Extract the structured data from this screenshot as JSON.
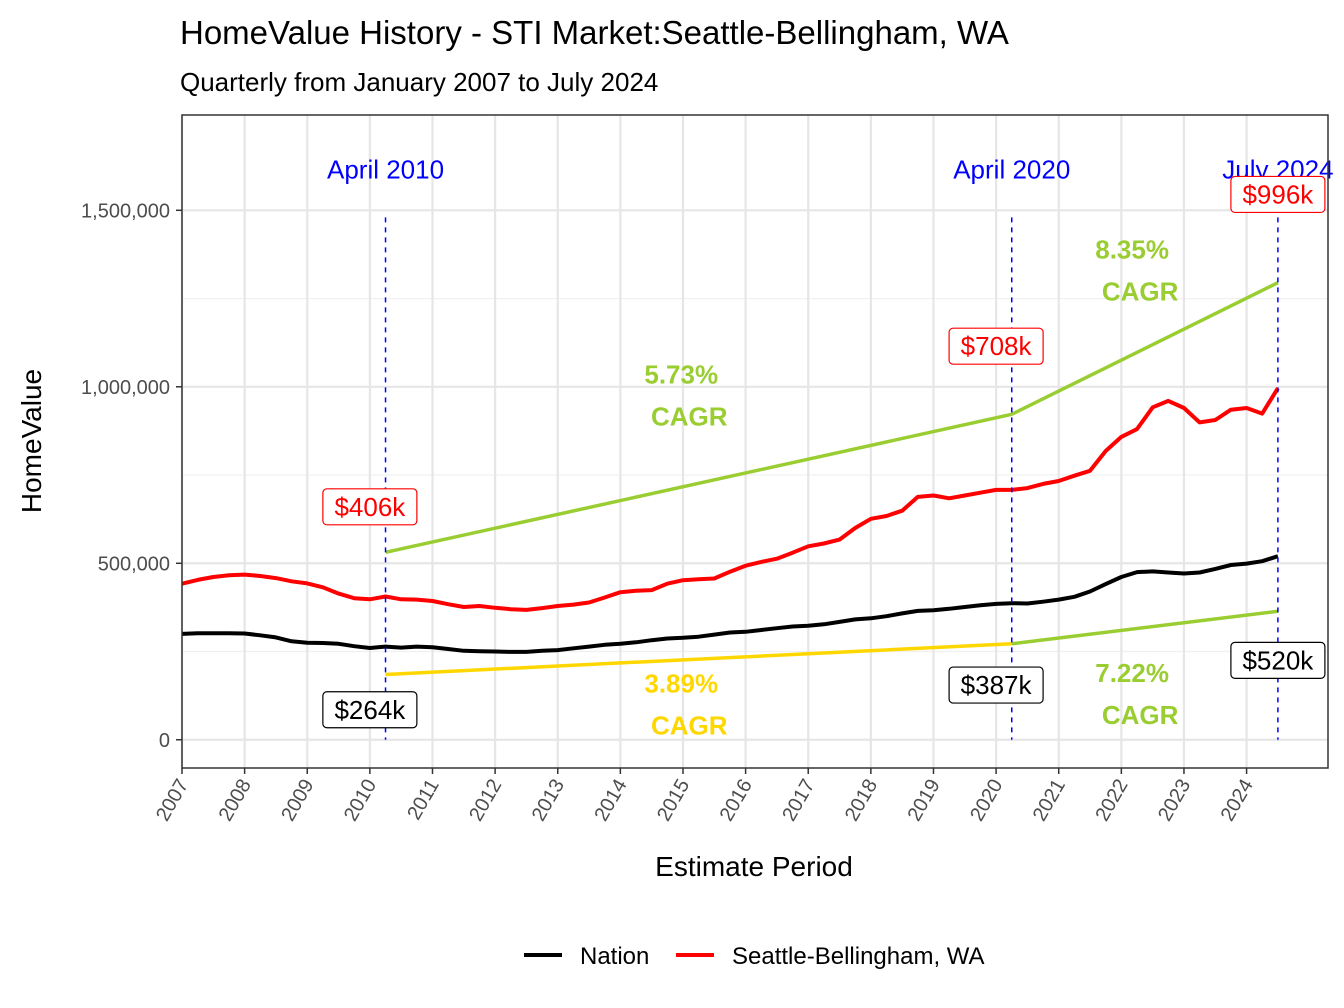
{
  "title": "HomeValue History - STI Market:Seattle-Bellingham, WA",
  "subtitle": "Quarterly from January 2007 to July 2024",
  "chart_data": {
    "type": "line",
    "xlabel": "Estimate Period",
    "ylabel": "HomeValue",
    "xlim": [
      2007,
      2025.3
    ],
    "ylim": [
      -80000,
      1770000
    ],
    "x_ticks": [
      "2007",
      "2008",
      "2009",
      "2010",
      "2011",
      "2012",
      "2013",
      "2014",
      "2015",
      "2016",
      "2017",
      "2018",
      "2019",
      "2020",
      "2021",
      "2022",
      "2023",
      "2024"
    ],
    "y_ticks": [
      0,
      500000,
      1000000,
      1500000
    ],
    "y_tick_labels": [
      "0",
      "500,000",
      "1,000,000",
      "1,500,000"
    ],
    "grid": true,
    "legend_position": "bottom",
    "series": [
      {
        "name": "Nation",
        "color": "#000000",
        "points": [
          [
            2007,
            300000
          ],
          [
            2007.25,
            302000
          ],
          [
            2007.5,
            302000
          ],
          [
            2007.75,
            302000
          ],
          [
            2008,
            301000
          ],
          [
            2008.25,
            296000
          ],
          [
            2008.5,
            290000
          ],
          [
            2008.75,
            279000
          ],
          [
            2009,
            275000
          ],
          [
            2009.25,
            274000
          ],
          [
            2009.5,
            272000
          ],
          [
            2009.75,
            265000
          ],
          [
            2010,
            260000
          ],
          [
            2010.25,
            264000
          ],
          [
            2010.5,
            261000
          ],
          [
            2010.75,
            264000
          ],
          [
            2011,
            262000
          ],
          [
            2011.25,
            257000
          ],
          [
            2011.5,
            252000
          ],
          [
            2011.75,
            251000
          ],
          [
            2012,
            250000
          ],
          [
            2012.25,
            249000
          ],
          [
            2012.5,
            249000
          ],
          [
            2012.75,
            252000
          ],
          [
            2013,
            254000
          ],
          [
            2013.25,
            259000
          ],
          [
            2013.5,
            264000
          ],
          [
            2013.75,
            269000
          ],
          [
            2014,
            272000
          ],
          [
            2014.25,
            276000
          ],
          [
            2014.5,
            282000
          ],
          [
            2014.75,
            287000
          ],
          [
            2015,
            289000
          ],
          [
            2015.25,
            292000
          ],
          [
            2015.5,
            298000
          ],
          [
            2015.75,
            304000
          ],
          [
            2016,
            306000
          ],
          [
            2016.25,
            311000
          ],
          [
            2016.5,
            316000
          ],
          [
            2016.75,
            321000
          ],
          [
            2017,
            323000
          ],
          [
            2017.25,
            327000
          ],
          [
            2017.5,
            334000
          ],
          [
            2017.75,
            341000
          ],
          [
            2018,
            344000
          ],
          [
            2018.25,
            350000
          ],
          [
            2018.5,
            358000
          ],
          [
            2018.75,
            365000
          ],
          [
            2019,
            367000
          ],
          [
            2019.25,
            371000
          ],
          [
            2019.5,
            376000
          ],
          [
            2019.75,
            381000
          ],
          [
            2020,
            385000
          ],
          [
            2020.25,
            387000
          ],
          [
            2020.5,
            386000
          ],
          [
            2020.75,
            391000
          ],
          [
            2021,
            397000
          ],
          [
            2021.25,
            405000
          ],
          [
            2021.5,
            420000
          ],
          [
            2021.75,
            441000
          ],
          [
            2022,
            461000
          ],
          [
            2022.25,
            475000
          ],
          [
            2022.5,
            477000
          ],
          [
            2022.75,
            474000
          ],
          [
            2023,
            471000
          ],
          [
            2023.25,
            474000
          ],
          [
            2023.5,
            484000
          ],
          [
            2023.75,
            495000
          ],
          [
            2024,
            499000
          ],
          [
            2024.25,
            506000
          ],
          [
            2024.5,
            520000
          ]
        ]
      },
      {
        "name": "Seattle-Bellingham, WA",
        "color": "#ff0000",
        "points": [
          [
            2007,
            442000
          ],
          [
            2007.25,
            453000
          ],
          [
            2007.5,
            461000
          ],
          [
            2007.75,
            466000
          ],
          [
            2008,
            468000
          ],
          [
            2008.25,
            464000
          ],
          [
            2008.5,
            458000
          ],
          [
            2008.75,
            449000
          ],
          [
            2009,
            443000
          ],
          [
            2009.25,
            432000
          ],
          [
            2009.5,
            414000
          ],
          [
            2009.75,
            401000
          ],
          [
            2010,
            398000
          ],
          [
            2010.25,
            406000
          ],
          [
            2010.5,
            398000
          ],
          [
            2010.75,
            397000
          ],
          [
            2011,
            393000
          ],
          [
            2011.25,
            384000
          ],
          [
            2011.5,
            376000
          ],
          [
            2011.75,
            379000
          ],
          [
            2012,
            374000
          ],
          [
            2012.25,
            370000
          ],
          [
            2012.5,
            368000
          ],
          [
            2012.75,
            373000
          ],
          [
            2013,
            379000
          ],
          [
            2013.25,
            383000
          ],
          [
            2013.5,
            389000
          ],
          [
            2013.75,
            403000
          ],
          [
            2014,
            418000
          ],
          [
            2014.25,
            422000
          ],
          [
            2014.5,
            424000
          ],
          [
            2014.75,
            442000
          ],
          [
            2015,
            452000
          ],
          [
            2015.25,
            455000
          ],
          [
            2015.5,
            457000
          ],
          [
            2015.75,
            476000
          ],
          [
            2016,
            493000
          ],
          [
            2016.25,
            504000
          ],
          [
            2016.5,
            513000
          ],
          [
            2016.75,
            530000
          ],
          [
            2017,
            548000
          ],
          [
            2017.25,
            556000
          ],
          [
            2017.5,
            567000
          ],
          [
            2017.75,
            600000
          ],
          [
            2018,
            626000
          ],
          [
            2018.25,
            634000
          ],
          [
            2018.5,
            649000
          ],
          [
            2018.75,
            688000
          ],
          [
            2019,
            692000
          ],
          [
            2019.25,
            684000
          ],
          [
            2019.5,
            692000
          ],
          [
            2019.75,
            700000
          ],
          [
            2020,
            708000
          ],
          [
            2020.25,
            708000
          ],
          [
            2020.5,
            713000
          ],
          [
            2020.75,
            725000
          ],
          [
            2021,
            733000
          ],
          [
            2021.25,
            748000
          ],
          [
            2021.5,
            762000
          ],
          [
            2021.75,
            818000
          ],
          [
            2022,
            858000
          ],
          [
            2022.25,
            880000
          ],
          [
            2022.5,
            942000
          ],
          [
            2022.75,
            960000
          ],
          [
            2023,
            940000
          ],
          [
            2023.25,
            899000
          ],
          [
            2023.5,
            906000
          ],
          [
            2023.75,
            935000
          ],
          [
            2024,
            940000
          ],
          [
            2024.25,
            924000
          ],
          [
            2024.5,
            996000
          ]
        ]
      }
    ],
    "trend_lines": [
      {
        "color": "#9acd32",
        "points": [
          [
            2010.25,
            531000
          ],
          [
            2020.25,
            922000
          ]
        ]
      },
      {
        "color": "#9acd32",
        "points": [
          [
            2020.25,
            922000
          ],
          [
            2024.5,
            1295000
          ]
        ]
      },
      {
        "color": "#ffd700",
        "points": [
          [
            2010.25,
            185000
          ],
          [
            2020.25,
            272000
          ]
        ]
      },
      {
        "color": "#9acd32",
        "points": [
          [
            2020.25,
            272000
          ],
          [
            2024.5,
            364000
          ]
        ]
      }
    ],
    "event_markers": [
      {
        "label": "April 2010",
        "x": 2010.25
      },
      {
        "label": "April 2020",
        "x": 2020.25
      },
      {
        "label": "July 2024",
        "x": 2024.5
      }
    ],
    "cagr_labels": [
      {
        "line1": "5.73%",
        "line2": "CAGR",
        "color": "#9acd32",
        "x": 2015.1,
        "y": 975000
      },
      {
        "line1": "8.35%",
        "line2": "CAGR",
        "color": "#9acd32",
        "x": 2022.3,
        "y": 1330000
      },
      {
        "line1": "3.89%",
        "line2": "CAGR",
        "color": "#ffd700",
        "x": 2015.1,
        "y": 100000
      },
      {
        "line1": "7.22%",
        "line2": "CAGR",
        "color": "#9acd32",
        "x": 2022.3,
        "y": 130000
      }
    ],
    "value_callouts": [
      {
        "text": "$406k",
        "color": "#ff0000",
        "x": 2010.0,
        "y": 660000
      },
      {
        "text": "$708k",
        "color": "#ff0000",
        "x": 2020.0,
        "y": 1115000
      },
      {
        "text": "$996k",
        "color": "#ff0000",
        "x": 2024.5,
        "y": 1545000
      },
      {
        "text": "$264k",
        "color": "#000000",
        "x": 2010.0,
        "y": 85000
      },
      {
        "text": "$387k",
        "color": "#000000",
        "x": 2020.0,
        "y": 155000
      },
      {
        "text": "$520k",
        "color": "#000000",
        "x": 2024.5,
        "y": 225000
      }
    ]
  }
}
